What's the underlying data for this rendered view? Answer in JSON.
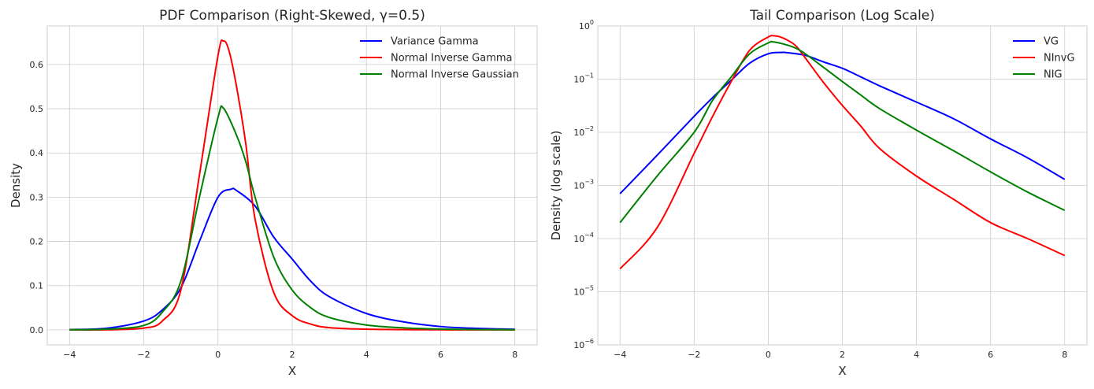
{
  "chart_data": [
    {
      "type": "line",
      "title": "PDF Comparison (Right-Skewed, γ=0.5)",
      "xlabel": "X",
      "ylabel": "Density",
      "xlim": [
        -4.6,
        8.6
      ],
      "ylim": [
        -0.034,
        0.687
      ],
      "yscale": "linear",
      "xticks": [
        -4,
        -2,
        0,
        2,
        4,
        6,
        8
      ],
      "xtick_labels": [
        "−4",
        "−2",
        "0",
        "2",
        "4",
        "6",
        "8"
      ],
      "yticks": [
        0.0,
        0.1,
        0.2,
        0.3,
        0.4,
        0.5,
        0.6
      ],
      "ytick_labels": [
        "0.0",
        "0.1",
        "0.2",
        "0.3",
        "0.4",
        "0.5",
        "0.6"
      ],
      "grid": true,
      "legend": "top-right",
      "series": [
        {
          "name": "Variance Gamma",
          "color": "#0000ff",
          "x": [
            -4,
            -3,
            -2,
            -1.5,
            -1,
            -0.5,
            0,
            0.35,
            0.5,
            1,
            1.5,
            2,
            2.5,
            3,
            4,
            5,
            6,
            7,
            8
          ],
          "y": [
            0.0007,
            0.0037,
            0.02,
            0.045,
            0.095,
            0.2,
            0.3,
            0.318,
            0.315,
            0.28,
            0.21,
            0.16,
            0.11,
            0.075,
            0.037,
            0.018,
            0.0075,
            0.0033,
            0.0013
          ]
        },
        {
          "name": "Normal Inverse Gamma",
          "color": "#ff0000",
          "x": [
            -4,
            -3,
            -2,
            -1.5,
            -1,
            -0.5,
            0,
            0.15,
            0.3,
            0.5,
            0.75,
            1,
            1.5,
            2,
            2.5,
            3,
            4,
            5,
            6,
            7,
            8
          ],
          "y": [
            2.7e-05,
            0.00016,
            0.004,
            0.02,
            0.09,
            0.35,
            0.62,
            0.653,
            0.63,
            0.55,
            0.42,
            0.25,
            0.085,
            0.032,
            0.013,
            0.005,
            0.0015,
            0.00055,
            0.0002,
            0.0001,
            4.8e-05
          ]
        },
        {
          "name": "Normal Inverse Gaussian",
          "color": "#008000",
          "x": [
            -4,
            -3,
            -2,
            -1.5,
            -1,
            -0.5,
            0,
            0.15,
            0.5,
            0.75,
            1,
            1.5,
            2,
            2.5,
            3,
            4,
            5,
            6,
            7,
            8
          ],
          "y": [
            0.0002,
            0.0015,
            0.01,
            0.04,
            0.11,
            0.3,
            0.48,
            0.501,
            0.44,
            0.38,
            0.3,
            0.165,
            0.09,
            0.05,
            0.028,
            0.011,
            0.0045,
            0.0018,
            0.00075,
            0.00034
          ]
        }
      ]
    },
    {
      "type": "line",
      "title": "Tail Comparison (Log Scale)",
      "xlabel": "X",
      "ylabel": "Density (log scale)",
      "xlim": [
        -4.6,
        8.6
      ],
      "ylim": [
        1e-06,
        1
      ],
      "yscale": "log",
      "xticks": [
        -4,
        -2,
        0,
        2,
        4,
        6,
        8
      ],
      "xtick_labels": [
        "−4",
        "−2",
        "0",
        "2",
        "4",
        "6",
        "8"
      ],
      "yticks": [
        0,
        -1,
        -2,
        -3,
        -4,
        -5,
        -6
      ],
      "ytick_labels": [
        "10^0",
        "10^−1",
        "10^−2",
        "10^−3",
        "10^−4",
        "10^−5",
        "10^−6"
      ],
      "grid": true,
      "legend": "top-right",
      "series": [
        {
          "name": "VG",
          "color": "#0000ff",
          "ref": 0
        },
        {
          "name": "NInvG",
          "color": "#ff0000",
          "ref": 1
        },
        {
          "name": "NIG",
          "color": "#008000",
          "ref": 2
        }
      ]
    }
  ]
}
